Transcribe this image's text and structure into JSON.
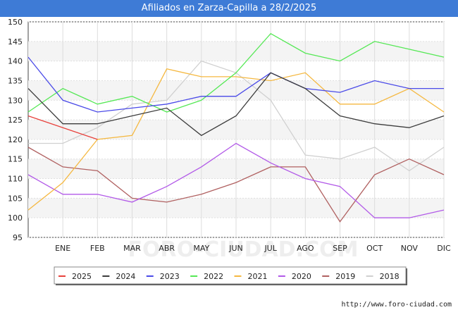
{
  "title": "Afiliados en Zarza-Capilla a 28/2/2025",
  "footer": "http://www.foro-ciudad.com",
  "watermark": "FORO-CIUDAD.COM",
  "chart_data": {
    "type": "line",
    "title": "Afiliados en Zarza-Capilla a 28/2/2025",
    "categories": [
      "",
      "ENE",
      "FEB",
      "MAR",
      "ABR",
      "MAY",
      "JUN",
      "JUL",
      "AGO",
      "SEP",
      "OCT",
      "NOV",
      "DIC"
    ],
    "ylim": [
      95,
      150
    ],
    "yticks": [
      95,
      100,
      105,
      110,
      115,
      120,
      125,
      130,
      135,
      140,
      145,
      150
    ],
    "grid": true,
    "legend_position": "bottom",
    "series": [
      {
        "name": "2025",
        "color": "#e8413c",
        "values": [
          126,
          123,
          120,
          null,
          null,
          null,
          null,
          null,
          null,
          null,
          null,
          null,
          null
        ]
      },
      {
        "name": "2024",
        "color": "#3c3c3c",
        "values": [
          133,
          124,
          124,
          126,
          128,
          121,
          126,
          137,
          133,
          126,
          124,
          123,
          126
        ]
      },
      {
        "name": "2023",
        "color": "#4a4ae8",
        "values": [
          141,
          130,
          127,
          128,
          129,
          131,
          131,
          137,
          133,
          132,
          135,
          133,
          133
        ]
      },
      {
        "name": "2022",
        "color": "#55e855",
        "values": [
          127,
          133,
          129,
          131,
          127,
          130,
          137,
          147,
          142,
          140,
          145,
          143,
          141
        ]
      },
      {
        "name": "2021",
        "color": "#f5b840",
        "values": [
          102,
          109,
          120,
          121,
          138,
          136,
          136,
          135,
          137,
          129,
          129,
          133,
          127
        ]
      },
      {
        "name": "2020",
        "color": "#b25ae8",
        "values": [
          111,
          106,
          106,
          104,
          108,
          113,
          119,
          114,
          110,
          108,
          100,
          100,
          102
        ]
      },
      {
        "name": "2019",
        "color": "#b06060",
        "values": [
          118,
          113,
          112,
          105,
          104,
          106,
          109,
          113,
          113,
          99,
          111,
          115,
          111
        ]
      },
      {
        "name": "2018",
        "color": "#d0d0d0",
        "values": [
          119,
          119,
          123,
          129,
          130,
          140,
          137,
          130,
          116,
          115,
          118,
          112,
          118
        ]
      }
    ]
  }
}
